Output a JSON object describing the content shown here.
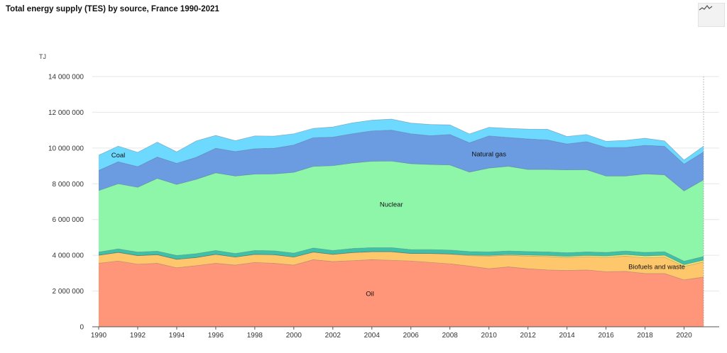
{
  "chart_data": {
    "type": "area",
    "stacked": true,
    "title": "Total energy supply (TES) by source, France 1990-2021",
    "ylabel": "TJ",
    "xlabel": "",
    "ylim": [
      0,
      14000000
    ],
    "yticks": [
      0,
      2000000,
      4000000,
      6000000,
      8000000,
      10000000,
      12000000,
      14000000
    ],
    "ytick_labels": [
      "0",
      "2 000 000",
      "4 000 000",
      "6 000 000",
      "8 000 000",
      "10 000 000",
      "12 000 000",
      "14 000 000"
    ],
    "xticks": [
      1990,
      1992,
      1994,
      1996,
      1998,
      2000,
      2002,
      2004,
      2006,
      2008,
      2010,
      2012,
      2014,
      2016,
      2018,
      2020
    ],
    "grid": true,
    "x": [
      1990,
      1991,
      1992,
      1993,
      1994,
      1995,
      1996,
      1997,
      1998,
      1999,
      2000,
      2001,
      2002,
      2003,
      2004,
      2005,
      2006,
      2007,
      2008,
      2009,
      2010,
      2011,
      2012,
      2013,
      2014,
      2015,
      2016,
      2017,
      2018,
      2019,
      2020,
      2021
    ],
    "series": [
      {
        "name": "Oil",
        "color": "#FF967A",
        "values": [
          3550000,
          3680000,
          3500000,
          3550000,
          3300000,
          3420000,
          3550000,
          3450000,
          3600000,
          3550000,
          3450000,
          3750000,
          3650000,
          3700000,
          3750000,
          3720000,
          3680000,
          3600000,
          3520000,
          3400000,
          3250000,
          3350000,
          3250000,
          3180000,
          3150000,
          3180000,
          3080000,
          3100000,
          2980000,
          2980000,
          2620000,
          2780000
        ]
      },
      {
        "name": "Biofuels and waste",
        "color": "#FFC76C",
        "values": [
          450000,
          480000,
          480000,
          480000,
          470000,
          450000,
          500000,
          450000,
          450000,
          480000,
          450000,
          430000,
          400000,
          450000,
          450000,
          480000,
          420000,
          500000,
          550000,
          580000,
          700000,
          650000,
          700000,
          750000,
          720000,
          740000,
          800000,
          850000,
          880000,
          920000,
          750000,
          850000
        ]
      },
      {
        "name": "",
        "color": "#F2E86D",
        "values": [
          0,
          0,
          0,
          0,
          0,
          0,
          0,
          0,
          0,
          0,
          0,
          0,
          0,
          0,
          0,
          0,
          0,
          0,
          0,
          30000,
          40000,
          40000,
          60000,
          60000,
          70000,
          70000,
          80000,
          90000,
          100000,
          100000,
          100000,
          100000
        ]
      },
      {
        "name": "",
        "color": "#3FC1A8",
        "values": [
          180000,
          200000,
          200000,
          200000,
          220000,
          220000,
          220000,
          200000,
          220000,
          220000,
          220000,
          230000,
          220000,
          230000,
          230000,
          230000,
          220000,
          220000,
          220000,
          200000,
          200000,
          200000,
          200000,
          200000,
          200000,
          200000,
          200000,
          200000,
          200000,
          200000,
          200000,
          200000
        ]
      },
      {
        "name": "Nuclear",
        "color": "#8EF6A9",
        "values": [
          3440000,
          3640000,
          3620000,
          4070000,
          3970000,
          4160000,
          4340000,
          4330000,
          4270000,
          4300000,
          4520000,
          4560000,
          4740000,
          4780000,
          4830000,
          4840000,
          4800000,
          4760000,
          4760000,
          4440000,
          4690000,
          4740000,
          4590000,
          4610000,
          4640000,
          4600000,
          4270000,
          4190000,
          4390000,
          4300000,
          3930000,
          4290000
        ]
      },
      {
        "name": "Natural gas",
        "color": "#6B9BE0",
        "values": [
          1130000,
          1230000,
          1160000,
          1200000,
          1180000,
          1230000,
          1380000,
          1370000,
          1420000,
          1440000,
          1530000,
          1610000,
          1600000,
          1640000,
          1700000,
          1730000,
          1680000,
          1610000,
          1710000,
          1640000,
          1800000,
          1610000,
          1710000,
          1650000,
          1450000,
          1570000,
          1600000,
          1600000,
          1600000,
          1600000,
          1500000,
          1560000
        ]
      },
      {
        "name": "Coal",
        "color": "#6DD9FF",
        "values": [
          850000,
          880000,
          800000,
          830000,
          650000,
          920000,
          720000,
          610000,
          720000,
          680000,
          630000,
          520000,
          570000,
          610000,
          600000,
          620000,
          600000,
          630000,
          540000,
          500000,
          480000,
          510000,
          550000,
          600000,
          420000,
          400000,
          350000,
          400000,
          400000,
          300000,
          230000,
          330000
        ]
      }
    ],
    "annotations": [
      {
        "text": "Oil",
        "x": 2003.9,
        "y": 1850000
      },
      {
        "text": "Biofuels and waste",
        "x": 2018.6,
        "y": 3350000
      },
      {
        "text": "Nuclear",
        "x": 2005.0,
        "y": 6850000
      },
      {
        "text": "Natural gas",
        "x": 2010.0,
        "y": 9650000
      },
      {
        "text": "Coal",
        "x": 1991.0,
        "y": 9600000
      }
    ]
  },
  "icons": {
    "chart_type_button": "line-chart-icon"
  }
}
